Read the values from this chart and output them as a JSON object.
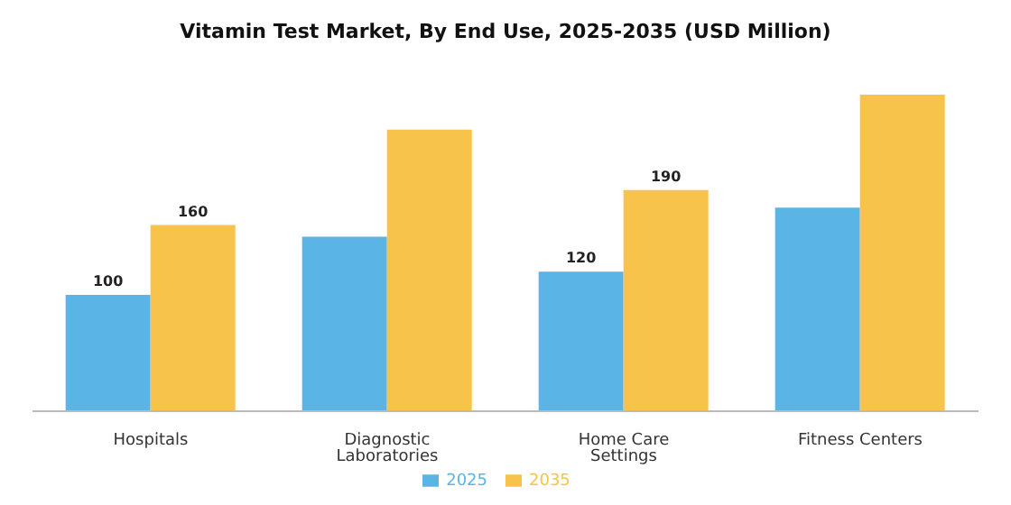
{
  "chart_data": {
    "type": "bar",
    "title": "Vitamin Test Market, By End Use, 2025-2035 (USD Million)",
    "categories": [
      "Hospitals",
      "Diagnostic Laboratories",
      "Home Care Settings",
      "Fitness Centers"
    ],
    "series": [
      {
        "name": "2025",
        "color": "#5ab4e5",
        "values": [
          100,
          150,
          120,
          175
        ],
        "value_labels": [
          "100",
          null,
          "120",
          null
        ]
      },
      {
        "name": "2035",
        "color": "#f8c34a",
        "values": [
          160,
          242,
          190,
          272
        ],
        "value_labels": [
          "160",
          null,
          "190",
          null
        ]
      }
    ],
    "legend": "bottom",
    "grid": false
  }
}
